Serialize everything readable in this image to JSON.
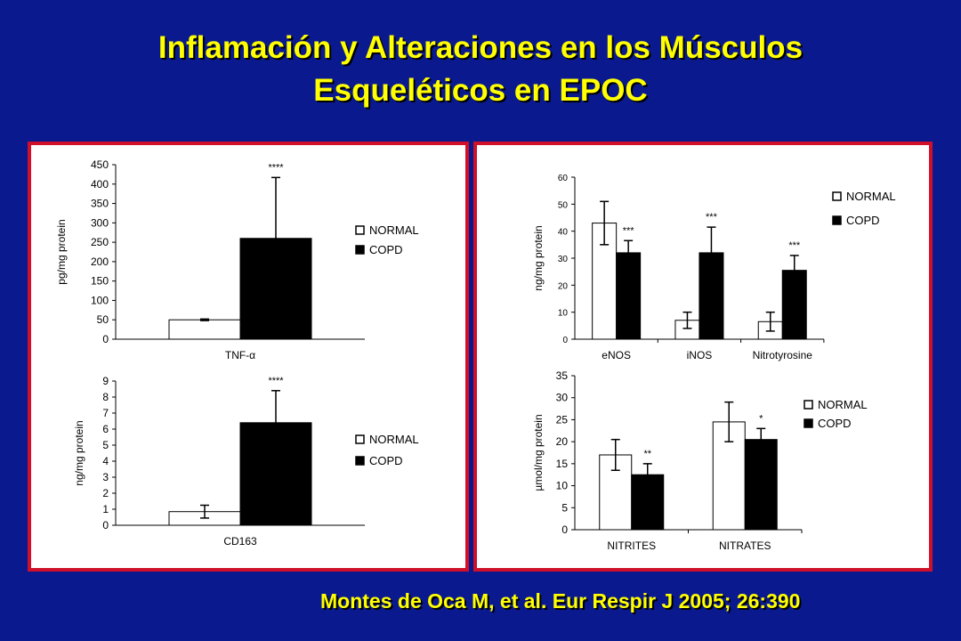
{
  "slide": {
    "title_line1": "Inflamación y Alteraciones en los Músculos",
    "title_line2": "Esqueléticos en EPOC",
    "citation": "Montes de Oca M, et al. Eur Respir J 2005; 26:390",
    "colors": {
      "background": "#0a1a8e",
      "title": "#ffff00",
      "panel_border": "#d0102a"
    }
  },
  "chart_data": [
    {
      "id": "tnf",
      "type": "bar",
      "categories": [
        "TNF-α"
      ],
      "series": [
        {
          "name": "NORMAL",
          "values": [
            50
          ],
          "errors": [
            2
          ]
        },
        {
          "name": "COPD",
          "values": [
            260
          ],
          "errors": [
            157
          ]
        }
      ],
      "significance": [
        [
          "",
          "****"
        ]
      ],
      "ylabel": "pg/mg protein",
      "ylim": [
        0,
        450
      ],
      "yticks": [
        0,
        50,
        100,
        150,
        200,
        250,
        300,
        350,
        400,
        450
      ],
      "legend": [
        "NORMAL",
        "COPD"
      ],
      "legend_position": "right",
      "grid": false
    },
    {
      "id": "cd163",
      "type": "bar",
      "categories": [
        "CD163"
      ],
      "series": [
        {
          "name": "NORMAL",
          "values": [
            0.85
          ],
          "errors": [
            0.4
          ]
        },
        {
          "name": "COPD",
          "values": [
            6.4
          ],
          "errors": [
            2.0
          ]
        }
      ],
      "significance": [
        [
          "",
          "****"
        ]
      ],
      "ylabel": "ng/mg protein",
      "ylim": [
        0,
        9
      ],
      "yticks": [
        0,
        1,
        2,
        3,
        4,
        5,
        6,
        7,
        8,
        9
      ],
      "legend": [
        "NORMAL",
        "COPD"
      ],
      "legend_position": "right",
      "grid": false
    },
    {
      "id": "nos",
      "type": "bar",
      "categories": [
        "eNOS",
        "iNOS",
        "Nitrotyrosine"
      ],
      "series": [
        {
          "name": "NORMAL",
          "values": [
            43,
            7,
            6.5
          ],
          "errors": [
            8,
            3,
            3.5
          ]
        },
        {
          "name": "COPD",
          "values": [
            32,
            32,
            25.5
          ],
          "errors": [
            4.5,
            9.5,
            5.5
          ]
        }
      ],
      "significance": [
        [
          "",
          "***"
        ],
        [
          "",
          "***"
        ],
        [
          "",
          "***"
        ]
      ],
      "ylabel": "ng/mg protein",
      "ylim": [
        0,
        60
      ],
      "yticks": [
        0,
        10,
        20,
        30,
        40,
        50,
        60
      ],
      "legend": [
        "NORMAL",
        "COPD"
      ],
      "legend_position": "top-right",
      "grid": false
    },
    {
      "id": "nitrites",
      "type": "bar",
      "categories": [
        "NITRITES",
        "NITRATES"
      ],
      "series": [
        {
          "name": "NORMAL",
          "values": [
            17,
            24.5
          ],
          "errors": [
            3.5,
            4.5
          ]
        },
        {
          "name": "COPD",
          "values": [
            12.5,
            20.5
          ],
          "errors": [
            2.5,
            2.5
          ]
        }
      ],
      "significance": [
        [
          "",
          "**"
        ],
        [
          "",
          "*"
        ]
      ],
      "ylabel": "µmol/mg protein",
      "ylim": [
        0,
        35
      ],
      "yticks": [
        0,
        5,
        10,
        15,
        20,
        25,
        30,
        35
      ],
      "legend": [
        "NORMAL",
        "COPD"
      ],
      "legend_position": "top-right",
      "grid": false
    }
  ]
}
